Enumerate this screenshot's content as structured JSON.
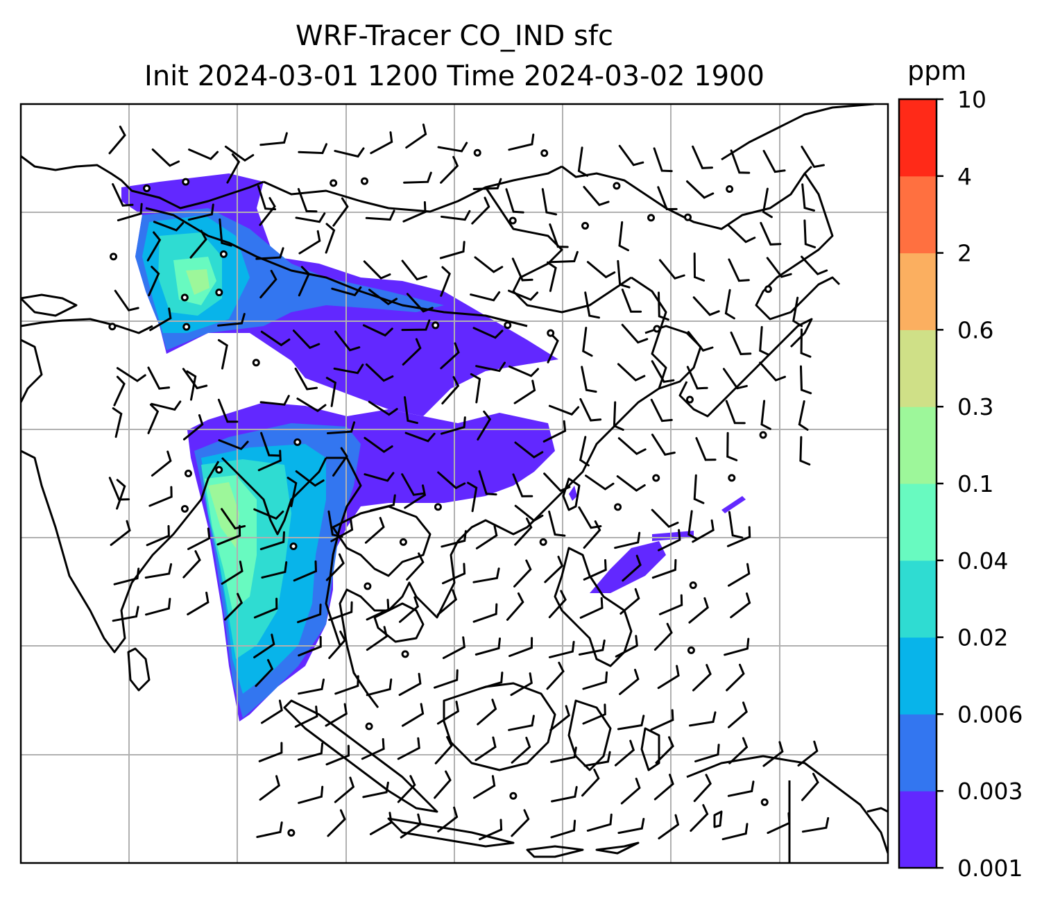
{
  "title": {
    "line1": "WRF-Tracer CO_IND sfc",
    "line2": "Init 2024-03-01 1200 Time 2024-03-02 1900"
  },
  "colorbar": {
    "unit": "ppm",
    "levels": [
      "0.001",
      "0.003",
      "0.006",
      "0.02",
      "0.04",
      "0.1",
      "0.3",
      "0.6",
      "2",
      "4",
      "10"
    ],
    "colors": [
      "#6228ff",
      "#3376f0",
      "#08b4ea",
      "#2fdcd2",
      "#68fac0",
      "#9df79a",
      "#cfe087",
      "#fbaf60",
      "#ff7040",
      "#ff2a18"
    ]
  },
  "map": {
    "gridlines": "on",
    "plume_colors_in_use": [
      "#6228ff",
      "#3376f0",
      "#08b4ea",
      "#2fdcd2",
      "#68fac0",
      "#9df79a"
    ],
    "wind_symbols": "barbs"
  }
}
